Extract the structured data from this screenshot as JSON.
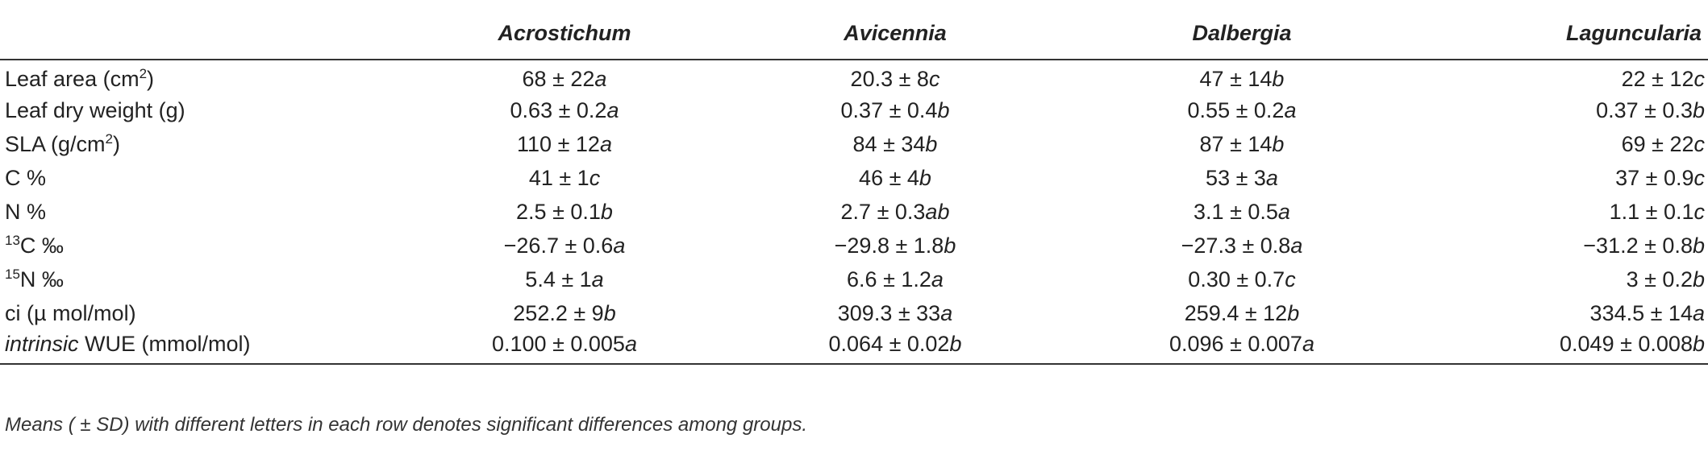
{
  "columns": [
    "Acrostichum",
    "Avicennia",
    "Dalbergia",
    "Laguncularia"
  ],
  "rows": [
    {
      "label": {
        "pre": "Leaf area (cm",
        "sup": "2",
        "post": ")"
      },
      "cells": [
        {
          "val": "68 ± 22",
          "let": "a"
        },
        {
          "val": "20.3 ± 8",
          "let": "c"
        },
        {
          "val": "47 ± 14",
          "let": "b"
        },
        {
          "val": "22 ± 12",
          "let": "c"
        }
      ]
    },
    {
      "label": {
        "pre": "Leaf dry weight (g)",
        "sup": "",
        "post": ""
      },
      "cells": [
        {
          "val": "0.63 ± 0.2",
          "let": "a"
        },
        {
          "val": "0.37 ± 0.4",
          "let": "b"
        },
        {
          "val": "0.55 ± 0.2",
          "let": "a"
        },
        {
          "val": "0.37 ± 0.3",
          "let": "b"
        }
      ]
    },
    {
      "label": {
        "pre": "SLA (g/cm",
        "sup": "2",
        "post": ")"
      },
      "cells": [
        {
          "val": "110 ± 12",
          "let": "a"
        },
        {
          "val": "84 ± 34",
          "let": "b"
        },
        {
          "val": "87 ± 14",
          "let": "b"
        },
        {
          "val": "69 ± 22",
          "let": "c"
        }
      ]
    },
    {
      "label": {
        "pre": "C %",
        "sup": "",
        "post": ""
      },
      "cells": [
        {
          "val": "41 ± 1",
          "let": "c"
        },
        {
          "val": "46 ± 4",
          "let": "b"
        },
        {
          "val": "53 ± 3",
          "let": "a"
        },
        {
          "val": "37 ± 0.9",
          "let": "c"
        }
      ]
    },
    {
      "label": {
        "pre": "N %",
        "sup": "",
        "post": ""
      },
      "cells": [
        {
          "val": "2.5 ± 0.1",
          "let": "b"
        },
        {
          "val": "2.7 ± 0.3",
          "let": "ab"
        },
        {
          "val": "3.1 ± 0.5",
          "let": "a"
        },
        {
          "val": "1.1 ± 0.1",
          "let": "c"
        }
      ]
    },
    {
      "label": {
        "pre": "",
        "sup": "13",
        "post": "C ‰"
      },
      "cells": [
        {
          "val": "−26.7 ± 0.6",
          "let": "a"
        },
        {
          "val": "−29.8 ± 1.8",
          "let": "b"
        },
        {
          "val": "−27.3 ± 0.8",
          "let": "a"
        },
        {
          "val": "−31.2 ± 0.8",
          "let": "b"
        }
      ]
    },
    {
      "label": {
        "pre": "",
        "sup": "15",
        "post": "N ‰"
      },
      "cells": [
        {
          "val": "5.4 ± 1",
          "let": "a"
        },
        {
          "val": "6.6 ± 1.2",
          "let": "a"
        },
        {
          "val": "0.30 ± 0.7",
          "let": "c"
        },
        {
          "val": "3 ± 0.2",
          "let": "b"
        }
      ]
    },
    {
      "label": {
        "pre": "ci (µ mol/mol)",
        "sup": "",
        "post": ""
      },
      "cells": [
        {
          "val": "252.2 ± 9",
          "let": "b"
        },
        {
          "val": "309.3 ± 33",
          "let": "a"
        },
        {
          "val": "259.4 ± 12",
          "let": "b"
        },
        {
          "val": "334.5 ± 14",
          "let": "a"
        }
      ]
    },
    {
      "label": {
        "pre": "",
        "sup": "",
        "post": "",
        "italic": "intrinsic",
        "rest": " WUE (mmol/mol)"
      },
      "cells": [
        {
          "val": "0.100 ± 0.005",
          "let": "a"
        },
        {
          "val": "0.064 ± 0.02",
          "let": "b"
        },
        {
          "val": "0.096 ± 0.007",
          "let": "a"
        },
        {
          "val": "0.049 ± 0.008",
          "let": "b"
        }
      ]
    }
  ],
  "footnote": "Means ( ± SD) with different letters in each row denotes significant differences among groups."
}
